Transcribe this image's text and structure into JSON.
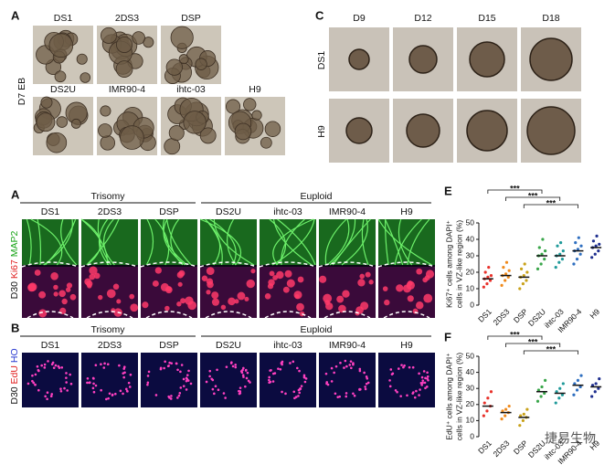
{
  "panel_a_top": {
    "letter": "A",
    "row_label": "D7 EB",
    "images": [
      "DS1",
      "2DS3",
      "DSP",
      "DS2U",
      "IMR90-4",
      "ihtc-03",
      "H9"
    ]
  },
  "panel_c": {
    "letter": "C",
    "columns": [
      "D9",
      "D12",
      "D15",
      "D18"
    ],
    "rows": [
      "DS1",
      "H9"
    ]
  },
  "panel_a_bottom": {
    "letter": "A",
    "groups": [
      "Trisomy",
      "Euploid"
    ],
    "images": [
      "DS1",
      "2DS3",
      "DSP",
      "DS2U",
      "ihtc-03",
      "IMR90-4",
      "H9"
    ],
    "stain_label": [
      "D30",
      "Ki67",
      "MAP2"
    ]
  },
  "panel_b": {
    "letter": "B",
    "groups": [
      "Trisomy",
      "Euploid"
    ],
    "images": [
      "DS1",
      "2DS3",
      "DSP",
      "DS2U",
      "ihtc-03",
      "IMR90-4",
      "H9"
    ],
    "stain_label": [
      "D30",
      "EdU",
      "HO"
    ]
  },
  "watermark": "捷易生物",
  "chart_data": [
    {
      "type": "strip",
      "letter": "E",
      "ylabel": [
        "Ki67⁺ cells among DAPI⁺",
        "cells in VZ-like region (%)"
      ],
      "categories": [
        "DS1",
        "2DS3",
        "DSP",
        "DS2U",
        "ihtc-03",
        "IMR90-4",
        "H9"
      ],
      "colors": [
        "#e8312a",
        "#f08a1c",
        "#c9a21a",
        "#3aa64a",
        "#1f9a9a",
        "#2f6fc0",
        "#1f2f8f"
      ],
      "values": [
        16,
        18,
        17,
        30,
        30,
        33,
        35
      ],
      "points": [
        [
          11,
          13,
          15,
          16,
          17,
          18,
          20,
          23
        ],
        [
          12,
          15,
          17,
          18,
          19,
          21,
          23,
          26
        ],
        [
          10,
          13,
          15,
          17,
          18,
          20,
          22,
          25
        ],
        [
          22,
          25,
          28,
          30,
          31,
          33,
          35,
          40
        ],
        [
          23,
          26,
          28,
          30,
          31,
          33,
          36,
          38
        ],
        [
          25,
          28,
          31,
          33,
          34,
          36,
          38,
          41
        ],
        [
          29,
          31,
          33,
          35,
          36,
          37,
          39,
          42
        ]
      ],
      "significance": [
        "***",
        "***",
        "***"
      ],
      "ylim": [
        0,
        50
      ],
      "yticks": [
        0,
        10,
        20,
        30,
        40,
        50
      ]
    },
    {
      "type": "strip",
      "letter": "F",
      "ylabel": [
        "EdU⁺ cells among DAPI⁺",
        "cells in VZ-like region (%)"
      ],
      "categories": [
        "DS1",
        "2DS3",
        "DSP",
        "DS2U",
        "ihtc-03",
        "IMR90-4",
        "H9"
      ],
      "colors": [
        "#e8312a",
        "#f08a1c",
        "#c9a21a",
        "#3aa64a",
        "#1f9a9a",
        "#2f6fc0",
        "#1f2f8f"
      ],
      "values": [
        19,
        15,
        12,
        28,
        27,
        32,
        31
      ],
      "points": [
        [
          13,
          16,
          19,
          21,
          24,
          28
        ],
        [
          11,
          13,
          15,
          16,
          17,
          19
        ],
        [
          7,
          10,
          12,
          13,
          14,
          17
        ],
        [
          22,
          25,
          27,
          29,
          31,
          35
        ],
        [
          21,
          24,
          26,
          28,
          30,
          33
        ],
        [
          26,
          29,
          31,
          33,
          35,
          38
        ],
        [
          25,
          28,
          30,
          32,
          33,
          36
        ]
      ],
      "significance": [
        "***",
        "***",
        "***"
      ],
      "ylim": [
        0,
        50
      ],
      "yticks": [
        0,
        10,
        20,
        30,
        40,
        50
      ]
    }
  ]
}
